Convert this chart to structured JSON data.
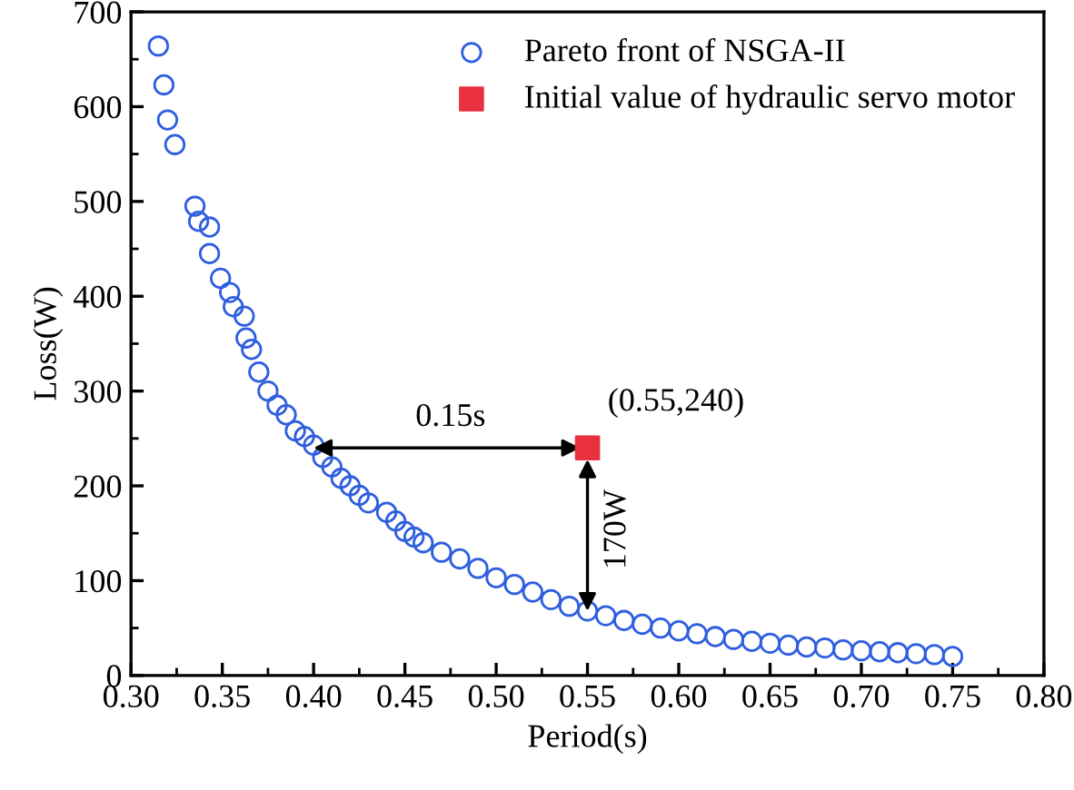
{
  "chart_data": {
    "type": "scatter",
    "xlabel": "Period(s)",
    "ylabel": "Loss(W)",
    "xlim": [
      0.3,
      0.8
    ],
    "xticks": [
      {
        "value": 0.3,
        "label": "0.30"
      },
      {
        "value": 0.35,
        "label": "0.35"
      },
      {
        "value": 0.4,
        "label": "0.40"
      },
      {
        "value": 0.45,
        "label": "0.45"
      },
      {
        "value": 0.5,
        "label": "0.50"
      },
      {
        "value": 0.55,
        "label": "0.55"
      },
      {
        "value": 0.6,
        "label": "0.60"
      },
      {
        "value": 0.65,
        "label": "0.65"
      },
      {
        "value": 0.7,
        "label": "0.70"
      },
      {
        "value": 0.75,
        "label": "0.75"
      },
      {
        "value": 0.8,
        "label": "0.80"
      }
    ],
    "ylim": [
      0,
      700
    ],
    "yticks": [
      0,
      100,
      200,
      300,
      400,
      500,
      600,
      700
    ],
    "grid": false,
    "legend": "top right",
    "series": [
      {
        "name": "Pareto front of NSGA-II",
        "marker": "circle",
        "color": "#2f5fe0",
        "x": [
          0.315,
          0.318,
          0.32,
          0.324,
          0.335,
          0.337,
          0.343,
          0.343,
          0.349,
          0.354,
          0.356,
          0.362,
          0.363,
          0.366,
          0.37,
          0.375,
          0.38,
          0.385,
          0.39,
          0.395,
          0.4,
          0.405,
          0.41,
          0.415,
          0.42,
          0.425,
          0.43,
          0.44,
          0.445,
          0.45,
          0.455,
          0.46,
          0.47,
          0.48,
          0.49,
          0.5,
          0.51,
          0.52,
          0.53,
          0.54,
          0.55,
          0.56,
          0.57,
          0.58,
          0.59,
          0.6,
          0.61,
          0.62,
          0.63,
          0.64,
          0.65,
          0.66,
          0.67,
          0.68,
          0.69,
          0.7,
          0.71,
          0.72,
          0.73,
          0.74,
          0.75
        ],
        "values": [
          664,
          623,
          586,
          560,
          495,
          479,
          473,
          445,
          419,
          404,
          389,
          379,
          356,
          344,
          320,
          300,
          285,
          275,
          258,
          252,
          243,
          230,
          220,
          208,
          200,
          190,
          182,
          172,
          163,
          152,
          146,
          140,
          130,
          123,
          113,
          103,
          96,
          88,
          80,
          73,
          68,
          63,
          58,
          54,
          50,
          47,
          44,
          41,
          38,
          36,
          34,
          32,
          30,
          29,
          27,
          26,
          25,
          24,
          23,
          22,
          20
        ]
      },
      {
        "name": "Initial value of hydraulic servo motor",
        "marker": "square",
        "color": "#e8303f",
        "x": [
          0.55
        ],
        "values": [
          240
        ]
      }
    ],
    "annotations": [
      "(0.55,240)",
      "0.15s",
      "170W"
    ]
  }
}
